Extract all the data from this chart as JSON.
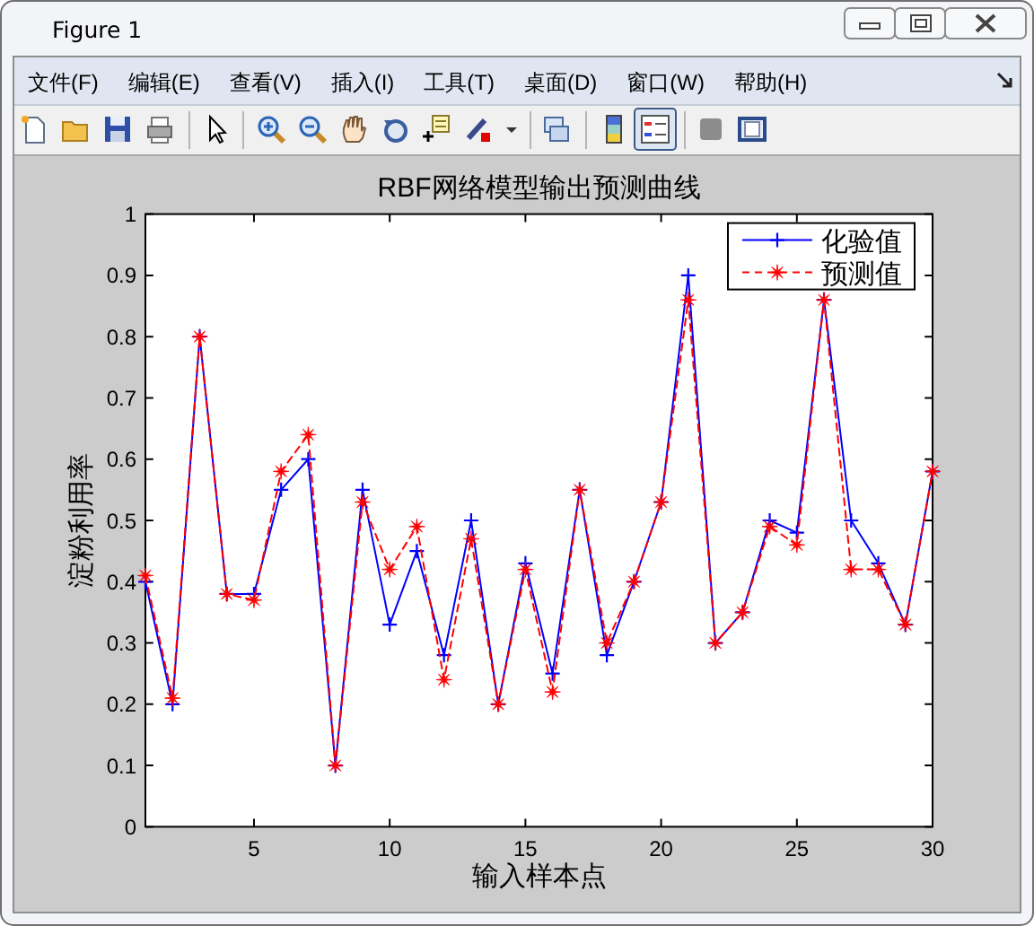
{
  "chart_data": {
    "type": "line",
    "title": "RBF网络模型输出预测曲线",
    "xlabel": "输入样本点",
    "ylabel": "淀粉利用率",
    "x": [
      1,
      2,
      3,
      4,
      5,
      6,
      7,
      8,
      9,
      10,
      11,
      12,
      13,
      14,
      15,
      16,
      17,
      18,
      19,
      20,
      21,
      22,
      23,
      24,
      25,
      26,
      27,
      28,
      29,
      30
    ],
    "series": [
      {
        "name": "化验值",
        "color": "#0000ff",
        "marker": "cross",
        "line_style": "solid",
        "values": [
          0.4,
          0.2,
          0.8,
          0.38,
          0.38,
          0.55,
          0.6,
          0.1,
          0.55,
          0.33,
          0.45,
          0.28,
          0.5,
          0.2,
          0.43,
          0.25,
          0.55,
          0.28,
          0.4,
          0.53,
          0.9,
          0.3,
          0.35,
          0.5,
          0.48,
          0.86,
          0.5,
          0.43,
          0.33,
          0.58
        ]
      },
      {
        "name": "预测值",
        "color": "#ff0000",
        "marker": "star",
        "line_style": "dashed",
        "values": [
          0.41,
          0.21,
          0.8,
          0.38,
          0.37,
          0.58,
          0.64,
          0.1,
          0.53,
          0.42,
          0.49,
          0.24,
          0.47,
          0.2,
          0.42,
          0.22,
          0.55,
          0.3,
          0.4,
          0.53,
          0.86,
          0.3,
          0.35,
          0.49,
          0.46,
          0.86,
          0.42,
          0.42,
          0.33,
          0.58
        ]
      }
    ],
    "xlim": [
      1,
      30
    ],
    "xticks": [
      5,
      10,
      15,
      20,
      25,
      30
    ],
    "ylim": [
      0,
      1
    ],
    "yticks": [
      0,
      0.1,
      0.2,
      0.3,
      0.4,
      0.5,
      0.6,
      0.7,
      0.8,
      0.9,
      1
    ],
    "legend": "top right",
    "annotations": [
      "Figure 1",
      "文件(F)",
      "编辑(E)",
      "查看(V)",
      "插入(I)",
      "工具(T)",
      "桌面(D)",
      "窗口(W)",
      "帮助(H)"
    ]
  }
}
